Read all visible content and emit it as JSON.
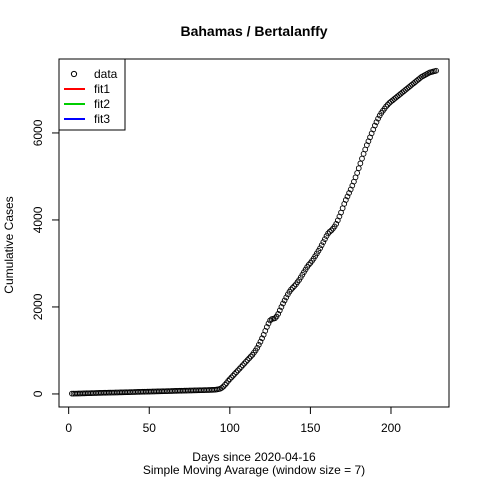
{
  "chart_data": {
    "type": "scatter",
    "title": "Bahamas / Bertalanffy",
    "xlabel": "Days since 2020-04-16",
    "subtitle": "Simple Moving Avarage (window size = 7)",
    "ylabel": "Cumulative Cases",
    "xlim": [
      -6,
      236
    ],
    "ylim": [
      -300,
      7700
    ],
    "x_ticks": [
      0,
      50,
      100,
      150,
      200
    ],
    "y_ticks": [
      0,
      2000,
      4000,
      6000
    ],
    "x_tick_labels": [
      "0",
      "50",
      "100",
      "150",
      "200"
    ],
    "y_tick_labels": [
      "0",
      "2000",
      "4000",
      "6000"
    ],
    "legend": {
      "position": "top-left",
      "entries": [
        {
          "label": "data",
          "symbol": "circle",
          "color": "#000000"
        },
        {
          "label": "fit1",
          "symbol": "line",
          "color": "#ff0000"
        },
        {
          "label": "fit2",
          "symbol": "line",
          "color": "#00cd00"
        },
        {
          "label": "fit3",
          "symbol": "line",
          "color": "#0000ff"
        }
      ]
    },
    "series": [
      {
        "symbol": "circle",
        "color": "#000000",
        "points": [
          [
            2,
            8
          ],
          [
            3,
            8
          ],
          [
            4,
            9
          ],
          [
            5,
            9
          ],
          [
            6,
            10
          ],
          [
            7,
            10
          ],
          [
            8,
            12
          ],
          [
            9,
            13
          ],
          [
            10,
            14
          ],
          [
            11,
            16
          ],
          [
            12,
            17
          ],
          [
            13,
            18
          ],
          [
            14,
            19
          ],
          [
            15,
            20
          ],
          [
            16,
            21
          ],
          [
            17,
            22
          ],
          [
            18,
            23
          ],
          [
            19,
            24
          ],
          [
            20,
            25
          ],
          [
            21,
            26
          ],
          [
            22,
            27
          ],
          [
            23,
            28
          ],
          [
            24,
            29
          ],
          [
            25,
            30
          ],
          [
            26,
            31
          ],
          [
            27,
            32
          ],
          [
            28,
            32
          ],
          [
            29,
            33
          ],
          [
            30,
            34
          ],
          [
            31,
            35
          ],
          [
            32,
            36
          ],
          [
            33,
            37
          ],
          [
            34,
            38
          ],
          [
            35,
            39
          ],
          [
            36,
            40
          ],
          [
            37,
            41
          ],
          [
            38,
            42
          ],
          [
            39,
            43
          ],
          [
            40,
            44
          ],
          [
            41,
            45
          ],
          [
            42,
            46
          ],
          [
            43,
            47
          ],
          [
            44,
            48
          ],
          [
            45,
            49
          ],
          [
            46,
            50
          ],
          [
            47,
            51
          ],
          [
            48,
            52
          ],
          [
            49,
            53
          ],
          [
            50,
            54
          ],
          [
            51,
            55
          ],
          [
            52,
            56
          ],
          [
            53,
            57
          ],
          [
            54,
            58
          ],
          [
            55,
            59
          ],
          [
            56,
            60
          ],
          [
            57,
            61
          ],
          [
            58,
            62
          ],
          [
            59,
            63
          ],
          [
            60,
            64
          ],
          [
            61,
            65
          ],
          [
            62,
            66
          ],
          [
            63,
            67
          ],
          [
            64,
            68
          ],
          [
            65,
            69
          ],
          [
            66,
            70
          ],
          [
            67,
            71
          ],
          [
            68,
            72
          ],
          [
            69,
            73
          ],
          [
            70,
            74
          ],
          [
            71,
            75
          ],
          [
            72,
            76
          ],
          [
            73,
            77
          ],
          [
            74,
            78
          ],
          [
            75,
            79
          ],
          [
            76,
            80
          ],
          [
            77,
            81
          ],
          [
            78,
            82
          ],
          [
            79,
            83
          ],
          [
            80,
            84
          ],
          [
            81,
            85
          ],
          [
            82,
            86
          ],
          [
            83,
            87
          ],
          [
            84,
            88
          ],
          [
            85,
            89
          ],
          [
            86,
            90
          ],
          [
            87,
            91
          ],
          [
            88,
            92
          ],
          [
            89,
            93
          ],
          [
            90,
            95
          ],
          [
            91,
            98
          ],
          [
            92,
            104
          ],
          [
            93,
            110
          ],
          [
            94,
            120
          ],
          [
            95,
            140
          ],
          [
            96,
            170
          ],
          [
            97,
            210
          ],
          [
            98,
            250
          ],
          [
            99,
            300
          ],
          [
            100,
            340
          ],
          [
            101,
            380
          ],
          [
            102,
            420
          ],
          [
            103,
            460
          ],
          [
            104,
            500
          ],
          [
            105,
            540
          ],
          [
            106,
            580
          ],
          [
            107,
            620
          ],
          [
            108,
            660
          ],
          [
            109,
            700
          ],
          [
            110,
            740
          ],
          [
            111,
            780
          ],
          [
            112,
            820
          ],
          [
            113,
            860
          ],
          [
            114,
            900
          ],
          [
            115,
            950
          ],
          [
            116,
            1000
          ],
          [
            117,
            1060
          ],
          [
            118,
            1130
          ],
          [
            119,
            1200
          ],
          [
            120,
            1280
          ],
          [
            121,
            1360
          ],
          [
            122,
            1450
          ],
          [
            123,
            1540
          ],
          [
            124,
            1620
          ],
          [
            125,
            1690
          ],
          [
            126,
            1720
          ],
          [
            127,
            1730
          ],
          [
            128,
            1740
          ],
          [
            129,
            1780
          ],
          [
            130,
            1840
          ],
          [
            131,
            1920
          ],
          [
            132,
            2000
          ],
          [
            133,
            2080
          ],
          [
            134,
            2150
          ],
          [
            135,
            2220
          ],
          [
            136,
            2290
          ],
          [
            137,
            2350
          ],
          [
            138,
            2400
          ],
          [
            139,
            2440
          ],
          [
            140,
            2480
          ],
          [
            141,
            2520
          ],
          [
            142,
            2570
          ],
          [
            143,
            2620
          ],
          [
            144,
            2680
          ],
          [
            145,
            2740
          ],
          [
            146,
            2800
          ],
          [
            147,
            2860
          ],
          [
            148,
            2920
          ],
          [
            149,
            2970
          ],
          [
            150,
            3010
          ],
          [
            151,
            3060
          ],
          [
            152,
            3110
          ],
          [
            153,
            3170
          ],
          [
            154,
            3230
          ],
          [
            155,
            3290
          ],
          [
            156,
            3350
          ],
          [
            157,
            3420
          ],
          [
            158,
            3490
          ],
          [
            159,
            3560
          ],
          [
            160,
            3630
          ],
          [
            161,
            3690
          ],
          [
            162,
            3730
          ],
          [
            163,
            3760
          ],
          [
            164,
            3800
          ],
          [
            165,
            3850
          ],
          [
            166,
            3910
          ],
          [
            167,
            3990
          ],
          [
            168,
            4080
          ],
          [
            169,
            4170
          ],
          [
            170,
            4270
          ],
          [
            171,
            4370
          ],
          [
            172,
            4460
          ],
          [
            173,
            4540
          ],
          [
            174,
            4620
          ],
          [
            175,
            4700
          ],
          [
            176,
            4790
          ],
          [
            177,
            4880
          ],
          [
            178,
            4980
          ],
          [
            179,
            5080
          ],
          [
            180,
            5190
          ],
          [
            181,
            5300
          ],
          [
            182,
            5410
          ],
          [
            183,
            5520
          ],
          [
            184,
            5620
          ],
          [
            185,
            5720
          ],
          [
            186,
            5810
          ],
          [
            187,
            5900
          ],
          [
            188,
            5990
          ],
          [
            189,
            6080
          ],
          [
            190,
            6170
          ],
          [
            191,
            6250
          ],
          [
            192,
            6330
          ],
          [
            193,
            6400
          ],
          [
            194,
            6460
          ],
          [
            195,
            6510
          ],
          [
            196,
            6560
          ],
          [
            197,
            6610
          ],
          [
            198,
            6650
          ],
          [
            199,
            6690
          ],
          [
            200,
            6720
          ],
          [
            201,
            6750
          ],
          [
            202,
            6780
          ],
          [
            203,
            6810
          ],
          [
            204,
            6840
          ],
          [
            205,
            6870
          ],
          [
            206,
            6900
          ],
          [
            207,
            6930
          ],
          [
            208,
            6960
          ],
          [
            209,
            6990
          ],
          [
            210,
            7020
          ],
          [
            211,
            7050
          ],
          [
            212,
            7080
          ],
          [
            213,
            7110
          ],
          [
            214,
            7140
          ],
          [
            215,
            7170
          ],
          [
            216,
            7200
          ],
          [
            217,
            7230
          ],
          [
            218,
            7260
          ],
          [
            219,
            7290
          ],
          [
            220,
            7310
          ],
          [
            221,
            7330
          ],
          [
            222,
            7350
          ],
          [
            223,
            7370
          ],
          [
            224,
            7390
          ],
          [
            225,
            7400
          ],
          [
            226,
            7410
          ],
          [
            227,
            7420
          ],
          [
            228,
            7430
          ]
        ]
      }
    ]
  }
}
